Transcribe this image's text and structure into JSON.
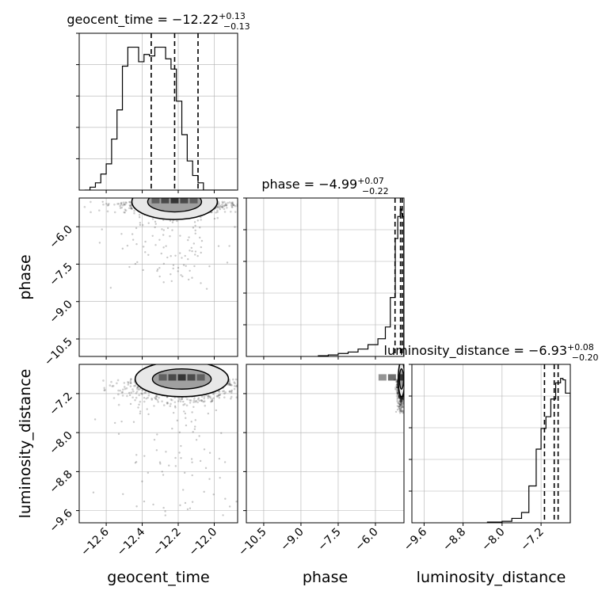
{
  "chart_data": {
    "type": "corner",
    "parameters": [
      "geocent_time",
      "phase",
      "luminosity_distance"
    ],
    "titles": [
      {
        "prefix": "geocent_time = ",
        "value": "−12.22",
        "plus": "+0.13",
        "minus": "−0.13"
      },
      {
        "prefix": "phase = ",
        "value": "−4.99",
        "plus": "+0.07",
        "minus": "−0.22"
      },
      {
        "prefix": "luminosity_distance = ",
        "value": "−6.93",
        "plus": "+0.08",
        "minus": "−0.20"
      }
    ],
    "axes": {
      "geocent_time": {
        "range": [
          -12.75,
          -11.87
        ],
        "ticks": [
          -12.6,
          -12.4,
          -12.2,
          -12.0
        ],
        "tick_labels": [
          "−12.6",
          "−12.4",
          "−12.2",
          "−12.0"
        ]
      },
      "phase": {
        "range": [
          -11.2,
          -4.85
        ],
        "ticks": [
          -10.5,
          -9.0,
          -7.5,
          -6.0
        ],
        "tick_labels": [
          "−10.5",
          "−9.0",
          "−7.5",
          "−6.0"
        ]
      },
      "luminosity_distance": {
        "range": [
          -9.85,
          -6.6
        ],
        "ticks": [
          -9.6,
          -8.8,
          -8.0,
          -7.2
        ],
        "tick_labels": [
          "−9.6",
          "−8.8",
          "−8.0",
          "−7.2"
        ]
      }
    },
    "histograms": {
      "geocent_time": {
        "bins": [
          -12.72,
          -12.69,
          -12.66,
          -12.63,
          -12.6,
          -12.57,
          -12.54,
          -12.51,
          -12.48,
          -12.45,
          -12.42,
          -12.39,
          -12.36,
          -12.33,
          -12.3,
          -12.27,
          -12.24,
          -12.21,
          -12.18,
          -12.15,
          -12.12,
          -12.09,
          -12.06,
          -12.03,
          -12.0,
          -11.97,
          -11.94,
          -11.91,
          -11.88
        ],
        "counts": [
          0.0,
          0.02,
          0.05,
          0.11,
          0.18,
          0.35,
          0.55,
          0.85,
          0.98,
          0.98,
          0.88,
          0.93,
          0.92,
          0.98,
          0.98,
          0.9,
          0.83,
          0.61,
          0.38,
          0.2,
          0.1,
          0.05,
          0.0,
          0.0,
          0.0,
          0.0,
          0.0,
          0.0
        ]
      },
      "phase": {
        "bins": [
          -8.3,
          -7.9,
          -7.5,
          -7.1,
          -6.7,
          -6.3,
          -5.9,
          -5.6,
          -5.4,
          -5.2,
          -5.1,
          -5.0,
          -4.95,
          -4.9,
          -4.86
        ],
        "counts": [
          0.005,
          0.01,
          0.02,
          0.03,
          0.05,
          0.08,
          0.12,
          0.2,
          0.4,
          0.8,
          0.95,
          1.0,
          0.97,
          0.95
        ]
      },
      "luminosity_distance": {
        "bins": [
          -8.3,
          -8.0,
          -7.8,
          -7.6,
          -7.45,
          -7.3,
          -7.2,
          -7.1,
          -7.0,
          -6.9,
          -6.8,
          -6.75,
          -6.7,
          -6.6
        ],
        "counts": [
          0.005,
          0.01,
          0.03,
          0.07,
          0.25,
          0.5,
          0.64,
          0.72,
          0.84,
          0.95,
          0.98,
          0.97,
          0.88
        ]
      }
    },
    "quantiles": {
      "geocent_time": [
        -12.35,
        -12.22,
        -12.09
      ],
      "phase": [
        -5.21,
        -4.99,
        -4.92
      ],
      "luminosity_distance": [
        -7.13,
        -6.93,
        -6.85
      ]
    },
    "samples": {
      "phase_vs_geocent_time": {
        "mean": [
          -12.22,
          -5.0
        ],
        "std": [
          0.11,
          0.09
        ],
        "tail_floor": -8.5
      },
      "luminosity_distance_vs_geocent_time": {
        "mean": [
          -12.18,
          -6.9
        ],
        "std": [
          0.12,
          0.09
        ],
        "tail_floor": -9.7
      },
      "luminosity_distance_vs_phase": {
        "mean": [
          -4.95,
          -6.9
        ],
        "std": [
          0.06,
          0.09
        ],
        "tail_floor": -7.6
      }
    }
  }
}
